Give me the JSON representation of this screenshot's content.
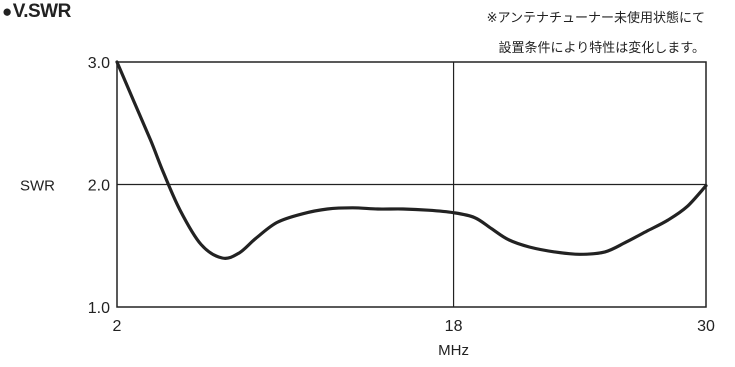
{
  "title_bullet": "●",
  "title": "V.SWR",
  "notes": [
    "※アンテナチューナー未使用状態にて",
    "設置条件により特性は変化します。"
  ],
  "chart_data": {
    "type": "line",
    "title": "V.SWR",
    "xlabel": "MHz",
    "ylabel": "SWR",
    "xlim": [
      2,
      30
    ],
    "ylim": [
      1.0,
      3.0
    ],
    "x_ticks": [
      {
        "value": 2,
        "label": "2"
      },
      {
        "value": 18,
        "label": "18"
      },
      {
        "value": 30,
        "label": "30"
      }
    ],
    "y_ticks": [
      {
        "value": 1.0,
        "label": "1.0"
      },
      {
        "value": 2.0,
        "label": "2.0"
      },
      {
        "value": 3.0,
        "label": "3.0"
      }
    ],
    "gridlines": {
      "x": [
        18
      ],
      "y": [
        2.0
      ]
    },
    "series": [
      {
        "color": "#222222",
        "x": [
          2,
          2.8,
          3.6,
          4.2,
          5.0,
          6.0,
          7.0,
          7.8,
          8.6,
          9.6,
          10.8,
          12.0,
          13.2,
          14.4,
          15.6,
          16.8,
          18.0,
          19.0,
          19.8,
          20.6,
          21.6,
          22.8,
          24.0,
          25.2,
          26.2,
          27.2,
          28.2,
          29.1,
          30.0
        ],
        "y": [
          3.0,
          2.68,
          2.36,
          2.1,
          1.79,
          1.51,
          1.4,
          1.44,
          1.56,
          1.69,
          1.76,
          1.8,
          1.81,
          1.8,
          1.8,
          1.79,
          1.77,
          1.73,
          1.64,
          1.55,
          1.49,
          1.45,
          1.43,
          1.45,
          1.53,
          1.62,
          1.71,
          1.82,
          1.99
        ]
      }
    ]
  }
}
